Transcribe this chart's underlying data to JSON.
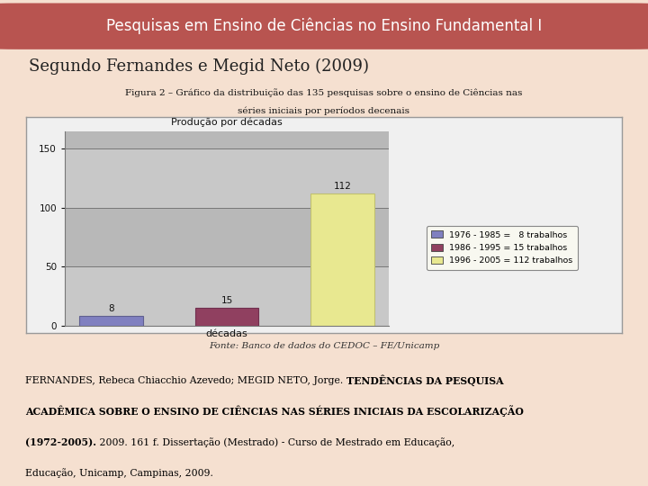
{
  "title_bar_text": "Pesquisas em Ensino de Ciências no Ensino Fundamental I",
  "title_bar_bg": "#b85450",
  "title_bar_text_color": "#ffffff",
  "subtitle": "Segundo Fernandes e Megid Neto (2009)",
  "subtitle_color": "#222222",
  "background_color": "#f5e0d0",
  "figure_caption_line1": "Figura 2 – Gráfico da distribuição das 135 pesquisas sobre o ensino de Ciências nas",
  "figure_caption_line2": "séries iniciais por períodos decenais",
  "chart_title": "Produção por décadas",
  "chart_xlabel": "décadas",
  "chart_bg_outer": "#f0f0f0",
  "chart_bg_plot": "#c8c8c8",
  "chart_bg_stripes": [
    "#c8c8c8",
    "#b8b8b8"
  ],
  "bar_values": [
    8,
    15,
    112
  ],
  "bar_colors": [
    "#8080c0",
    "#904060",
    "#e8e890"
  ],
  "bar_edge_colors": [
    "#606090",
    "#703050",
    "#c0c070"
  ],
  "bar_shadow_colors": [
    "#505080",
    "#602040",
    "#a0a050"
  ],
  "legend_labels": [
    "1976 - 1985 =   8 trabalhos",
    "1986 - 1995 = 15 trabalhos",
    "1996 - 2005 = 112 trabalhos"
  ],
  "legend_colors": [
    "#8080c0",
    "#904060",
    "#e8e890"
  ],
  "yticks": [
    0,
    50,
    100,
    150
  ],
  "ylim": [
    0,
    165
  ],
  "source_text": "Fonte: Banco de dados do CEDOC – FE/Unicamp",
  "ref_normal1": "FERNANDES, Rebeca Chiacchio Azevedo; MEGID NETO, Jorge. ",
  "ref_bold1": "TENDÊNCIAS DA PESQUISA",
  "ref_bold2": "ACADÊMICA SOBRE O ENSINO DE CIÊNCIAS NAS SÉRIES INICIAIS DA ESCOLARIZAÇÃO",
  "ref_bold3": "(1972-2005).",
  "ref_normal2": " 2009. 161 f. Dissertação (Mestrado) - Curso de Mestrado em Educação,",
  "ref_normal3": "Educação, Unicamp, Campinas, 2009.",
  "title_fontsize": 12,
  "subtitle_fontsize": 13,
  "caption_fontsize": 7.5,
  "ref_fontsize": 7.8,
  "source_fontsize": 7.5
}
